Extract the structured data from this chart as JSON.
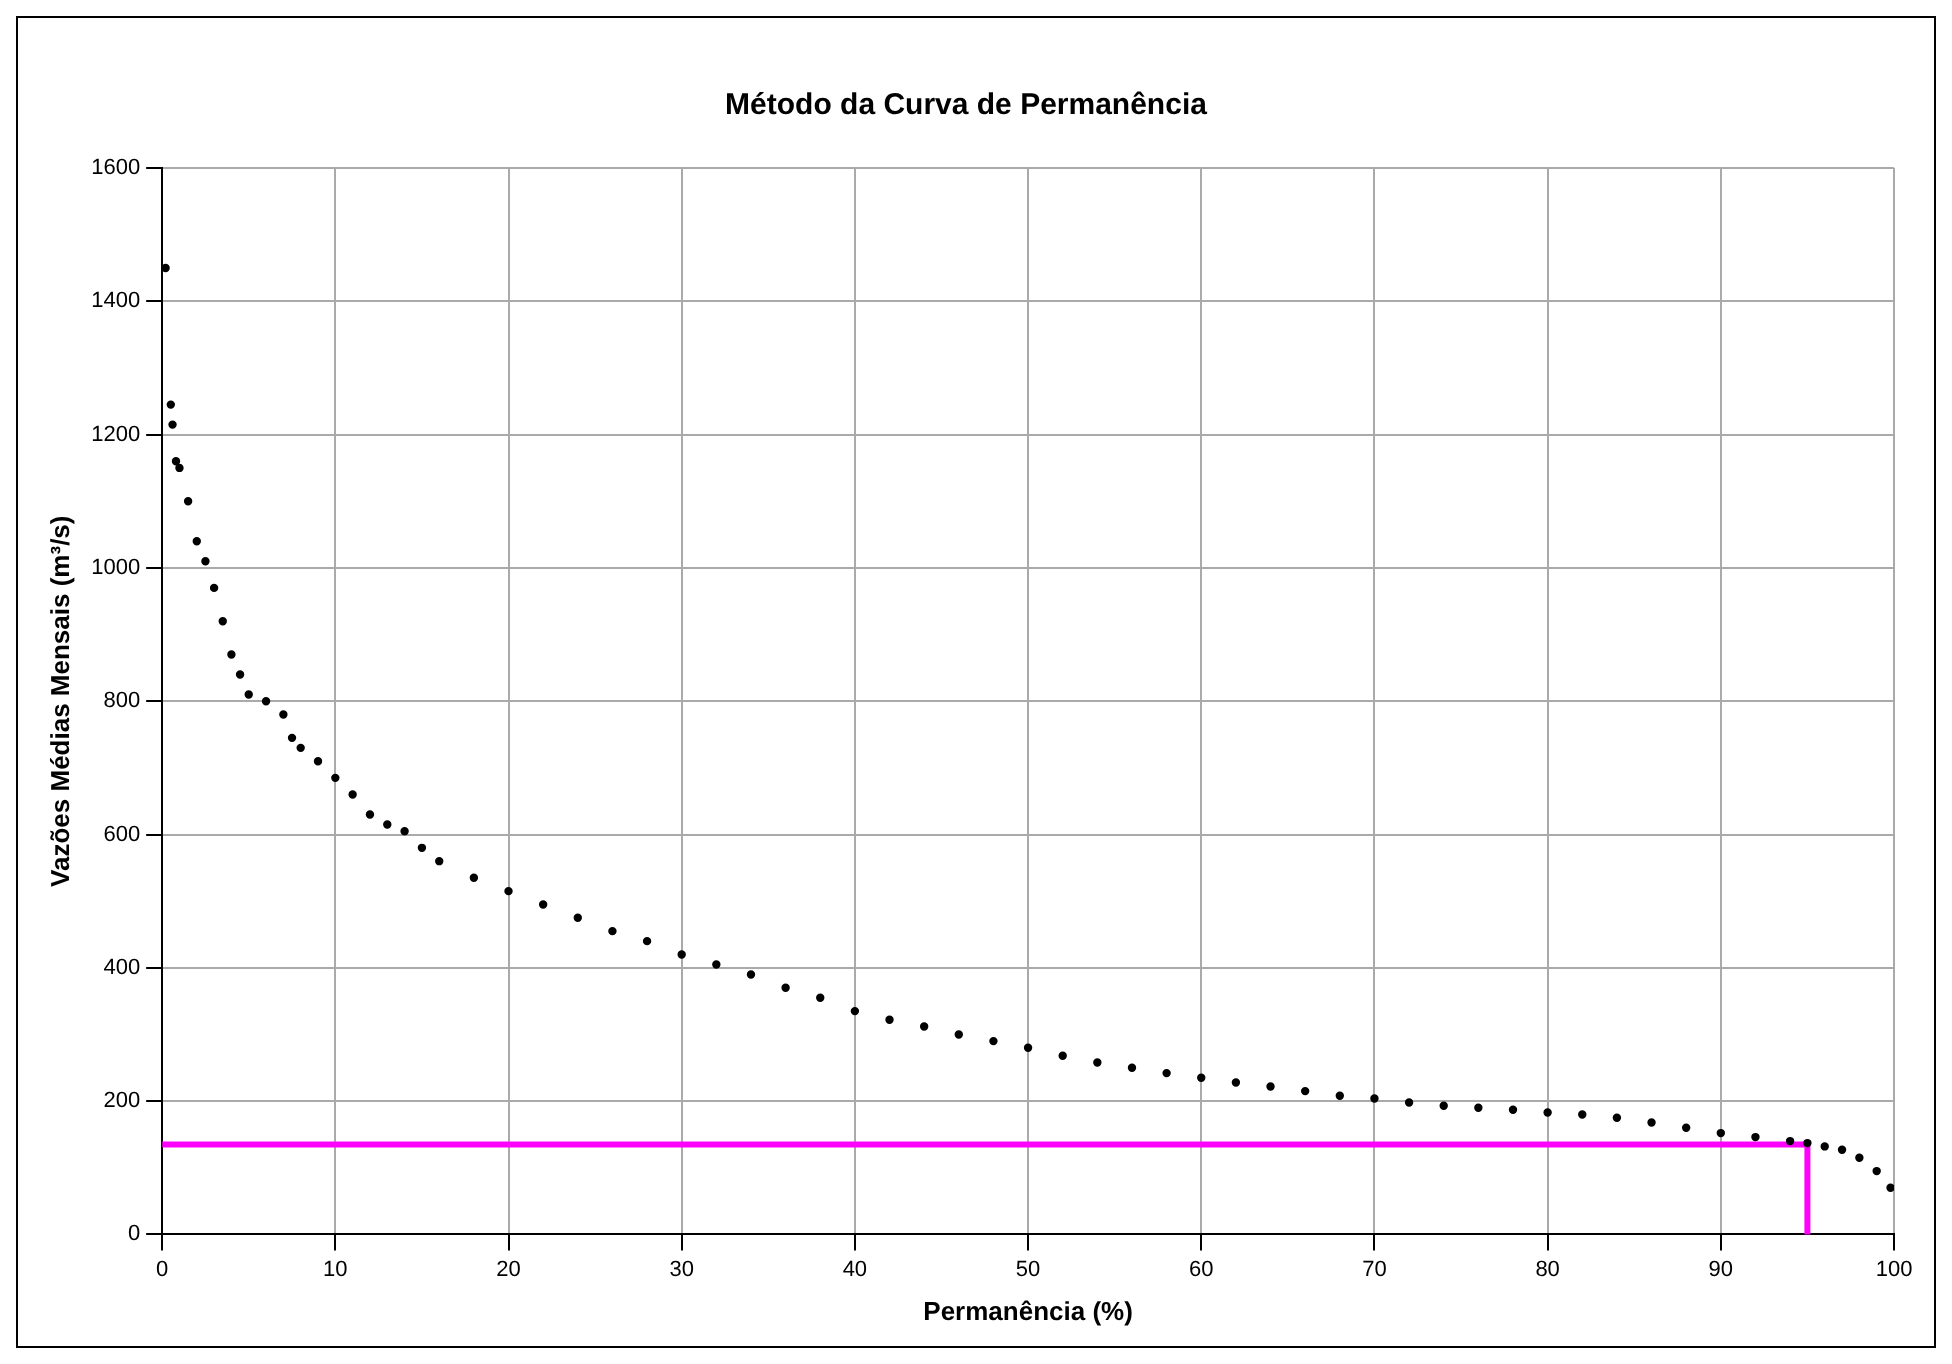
{
  "chart_data": {
    "type": "scatter",
    "title": "Método da Curva de Permanência",
    "xlabel": "Permanência (%)",
    "ylabel": "Vazões Médias Mensais (m³/s)",
    "xlim": [
      0,
      100
    ],
    "xticks": [
      0,
      10,
      20,
      30,
      40,
      50,
      60,
      70,
      80,
      90,
      100
    ],
    "ylim": [
      0,
      1600
    ],
    "yticks": [
      0,
      200,
      400,
      600,
      800,
      1000,
      1200,
      1400,
      1600
    ],
    "grid": true,
    "legend": false,
    "marker": "circle",
    "series": [
      {
        "color": "#000000",
        "x": [
          0.2,
          0.5,
          0.6,
          0.8,
          1,
          1.5,
          2,
          2.5,
          3,
          3.5,
          4,
          4.5,
          5,
          6,
          7,
          7.5,
          8,
          9,
          10,
          11,
          12,
          13,
          14,
          15,
          16,
          18,
          20,
          22,
          24,
          26,
          28,
          30,
          32,
          34,
          36,
          38,
          40,
          42,
          44,
          46,
          48,
          50,
          52,
          54,
          56,
          58,
          60,
          62,
          64,
          66,
          68,
          70,
          72,
          74,
          76,
          78,
          80,
          82,
          84,
          86,
          88,
          90,
          92,
          94,
          95,
          96,
          97,
          98,
          99,
          99.8
        ],
        "values": [
          1450,
          1245,
          1215,
          1160,
          1150,
          1100,
          1040,
          1010,
          970,
          920,
          870,
          840,
          810,
          800,
          780,
          745,
          730,
          710,
          685,
          660,
          630,
          615,
          605,
          580,
          560,
          535,
          515,
          495,
          475,
          455,
          440,
          420,
          405,
          390,
          370,
          355,
          335,
          322,
          312,
          300,
          290,
          280,
          268,
          258,
          250,
          242,
          235,
          228,
          222,
          215,
          208,
          204,
          198,
          193,
          190,
          187,
          183,
          180,
          175,
          168,
          160,
          152,
          146,
          140,
          137,
          132,
          127,
          115,
          95,
          70
        ]
      },
      {
        "type": "line",
        "color": "#ff00ff",
        "marker": "none",
        "x": [
          0,
          95,
          95
        ],
        "values": [
          135,
          135,
          0
        ]
      }
    ]
  }
}
